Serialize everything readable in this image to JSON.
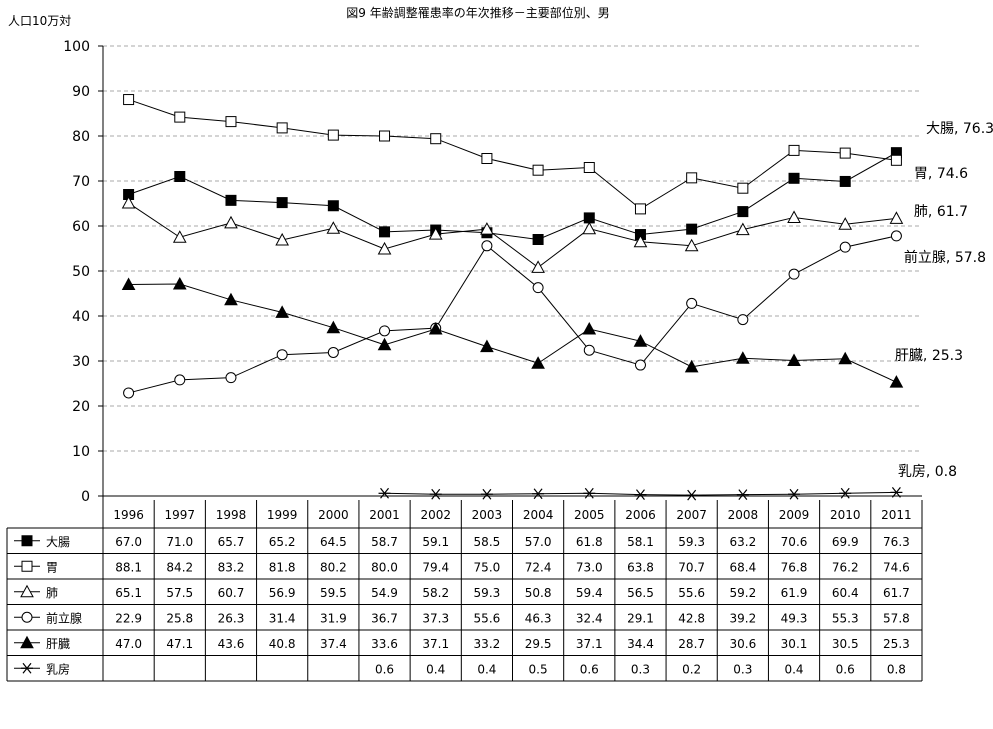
{
  "chart_data": {
    "type": "line",
    "title": "図9 年齢調整罹患率の年次推移－主要部位別、男",
    "ylabel": "人口10万対",
    "xlabel": "",
    "ylim": [
      0,
      100
    ],
    "yticks": [
      "0",
      "10",
      "20",
      "30",
      "40",
      "50",
      "60",
      "70",
      "80",
      "90",
      "100"
    ],
    "grid": "horizontal dashed",
    "categories": [
      "1996",
      "1997",
      "1998",
      "1999",
      "2000",
      "2001",
      "2002",
      "2003",
      "2004",
      "2005",
      "2006",
      "2007",
      "2008",
      "2009",
      "2010",
      "2011"
    ],
    "series": [
      {
        "name": "大腸",
        "marker": "filled-square",
        "end_label": "大腸, 76.3",
        "values": [
          67.0,
          71.0,
          65.7,
          65.2,
          64.5,
          58.7,
          59.1,
          58.5,
          57.0,
          61.8,
          58.1,
          59.3,
          63.2,
          70.6,
          69.9,
          76.3
        ],
        "display": [
          "67.0",
          "71.0",
          "65.7",
          "65.2",
          "64.5",
          "58.7",
          "59.1",
          "58.5",
          "57.0",
          "61.8",
          "58.1",
          "59.3",
          "63.2",
          "70.6",
          "69.9",
          "76.3"
        ]
      },
      {
        "name": "胃",
        "marker": "open-square",
        "end_label": "胃, 74.6",
        "values": [
          88.1,
          84.2,
          83.2,
          81.8,
          80.2,
          80.0,
          79.4,
          75.0,
          72.4,
          73.0,
          63.8,
          70.7,
          68.4,
          76.8,
          76.2,
          74.6
        ],
        "display": [
          "88.1",
          "84.2",
          "83.2",
          "81.8",
          "80.2",
          "80.0",
          "79.4",
          "75.0",
          "72.4",
          "73.0",
          "63.8",
          "70.7",
          "68.4",
          "76.8",
          "76.2",
          "74.6"
        ]
      },
      {
        "name": "肺",
        "marker": "open-triangle",
        "end_label": "肺, 61.7",
        "values": [
          65.1,
          57.5,
          60.7,
          56.9,
          59.5,
          54.9,
          58.2,
          59.3,
          50.8,
          59.4,
          56.5,
          55.6,
          59.2,
          61.9,
          60.4,
          61.7
        ],
        "display": [
          "65.1",
          "57.5",
          "60.7",
          "56.9",
          "59.5",
          "54.9",
          "58.2",
          "59.3",
          "50.8",
          "59.4",
          "56.5",
          "55.6",
          "59.2",
          "61.9",
          "60.4",
          "61.7"
        ]
      },
      {
        "name": "前立腺",
        "marker": "open-circle",
        "end_label": "前立腺, 57.8",
        "values": [
          22.9,
          25.8,
          26.3,
          31.4,
          31.9,
          36.7,
          37.3,
          55.6,
          46.3,
          32.4,
          29.1,
          42.8,
          39.2,
          49.3,
          55.3,
          57.8
        ],
        "display": [
          "22.9",
          "25.8",
          "26.3",
          "31.4",
          "31.9",
          "36.7",
          "37.3",
          "55.6",
          "46.3",
          "32.4",
          "29.1",
          "42.8",
          "39.2",
          "49.3",
          "55.3",
          "57.8"
        ]
      },
      {
        "name": "肝臓",
        "marker": "filled-triangle",
        "end_label": "肝臓, 25.3",
        "values": [
          47.0,
          47.1,
          43.6,
          40.8,
          37.4,
          33.6,
          37.1,
          33.2,
          29.5,
          37.1,
          34.4,
          28.7,
          30.6,
          30.1,
          30.5,
          25.3
        ],
        "display": [
          "47.0",
          "47.1",
          "43.6",
          "40.8",
          "37.4",
          "33.6",
          "37.1",
          "33.2",
          "29.5",
          "37.1",
          "34.4",
          "28.7",
          "30.6",
          "30.1",
          "30.5",
          "25.3"
        ]
      },
      {
        "name": "乳房",
        "marker": "asterisk",
        "end_label": "乳房, 0.8",
        "values": [
          null,
          null,
          null,
          null,
          null,
          0.6,
          0.4,
          0.4,
          0.5,
          0.6,
          0.3,
          0.2,
          0.3,
          0.4,
          0.6,
          0.8
        ],
        "display": [
          "",
          "",
          "",
          "",
          "",
          "0.6",
          "0.4",
          "0.4",
          "0.5",
          "0.6",
          "0.3",
          "0.2",
          "0.3",
          "0.4",
          "0.6",
          "0.8"
        ]
      }
    ]
  }
}
